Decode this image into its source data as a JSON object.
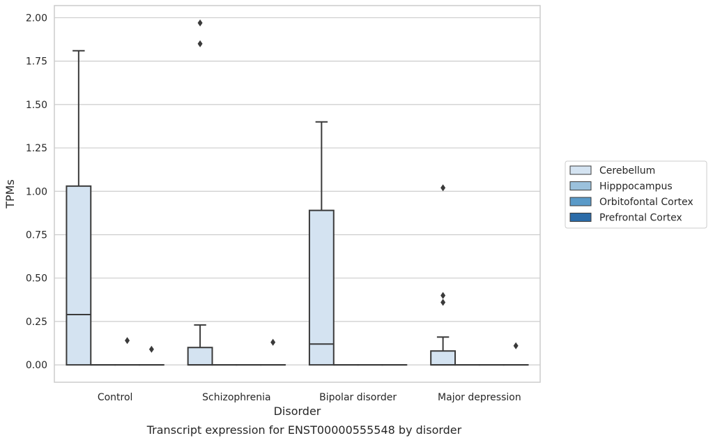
{
  "chart_data": {
    "type": "box",
    "title": "Transcript expression for ENST00000555548 by disorder",
    "xlabel": "Disorder",
    "ylabel": "TPMs",
    "ylim": [
      -0.1,
      2.07
    ],
    "yticks": [
      "0.00",
      "0.25",
      "0.50",
      "0.75",
      "1.00",
      "1.25",
      "1.50",
      "1.75",
      "2.00"
    ],
    "grid": true,
    "legend_position": "right, outside plot",
    "categories": [
      "Control",
      "Schizophrenia",
      "Bipolar disorder",
      "Major depression"
    ],
    "series": [
      {
        "name": "Cerebellum",
        "color": "#d4e3f1",
        "boxes": [
          {
            "q1": 0.0,
            "median": 0.29,
            "q3": 1.03,
            "whisker_low": 0.0,
            "whisker_high": 1.81,
            "outliers": []
          },
          {
            "q1": 0.0,
            "median": 0.0,
            "q3": 0.1,
            "whisker_low": 0.0,
            "whisker_high": 0.23,
            "outliers": [
              1.85,
              1.97
            ]
          },
          {
            "q1": 0.0,
            "median": 0.12,
            "q3": 0.89,
            "whisker_low": 0.0,
            "whisker_high": 1.4,
            "outliers": []
          },
          {
            "q1": 0.0,
            "median": 0.0,
            "q3": 0.08,
            "whisker_low": 0.0,
            "whisker_high": 0.16,
            "outliers": [
              0.36,
              0.4,
              1.02
            ]
          }
        ]
      },
      {
        "name": "Hipppocampus",
        "color": "#9bc1dc",
        "boxes": [
          {
            "q1": 0.0,
            "median": 0.0,
            "q3": 0.0,
            "whisker_low": 0.0,
            "whisker_high": 0.0,
            "outliers": []
          },
          {
            "q1": 0.0,
            "median": 0.0,
            "q3": 0.0,
            "whisker_low": 0.0,
            "whisker_high": 0.0,
            "outliers": []
          },
          {
            "q1": 0.0,
            "median": 0.0,
            "q3": 0.0,
            "whisker_low": 0.0,
            "whisker_high": 0.0,
            "outliers": []
          },
          {
            "q1": 0.0,
            "median": 0.0,
            "q3": 0.0,
            "whisker_low": 0.0,
            "whisker_high": 0.0,
            "outliers": []
          }
        ]
      },
      {
        "name": "Orbitofontal Cortex",
        "color": "#5a9ac8",
        "boxes": [
          {
            "q1": 0.0,
            "median": 0.0,
            "q3": 0.0,
            "whisker_low": 0.0,
            "whisker_high": 0.0,
            "outliers": [
              0.14
            ]
          },
          {
            "q1": 0.0,
            "median": 0.0,
            "q3": 0.0,
            "whisker_low": 0.0,
            "whisker_high": 0.0,
            "outliers": []
          },
          {
            "q1": 0.0,
            "median": 0.0,
            "q3": 0.0,
            "whisker_low": 0.0,
            "whisker_high": 0.0,
            "outliers": []
          },
          {
            "q1": 0.0,
            "median": 0.0,
            "q3": 0.0,
            "whisker_low": 0.0,
            "whisker_high": 0.0,
            "outliers": []
          }
        ]
      },
      {
        "name": "Prefrontal Cortex",
        "color": "#2b6ba8",
        "boxes": [
          {
            "q1": 0.0,
            "median": 0.0,
            "q3": 0.0,
            "whisker_low": 0.0,
            "whisker_high": 0.0,
            "outliers": [
              0.09
            ]
          },
          {
            "q1": 0.0,
            "median": 0.0,
            "q3": 0.0,
            "whisker_low": 0.0,
            "whisker_high": 0.0,
            "outliers": [
              0.13
            ]
          },
          {
            "q1": 0.0,
            "median": 0.0,
            "q3": 0.0,
            "whisker_low": 0.0,
            "whisker_high": 0.0,
            "outliers": []
          },
          {
            "q1": 0.0,
            "median": 0.0,
            "q3": 0.0,
            "whisker_low": 0.0,
            "whisker_high": 0.0,
            "outliers": [
              0.11
            ]
          }
        ]
      }
    ]
  }
}
